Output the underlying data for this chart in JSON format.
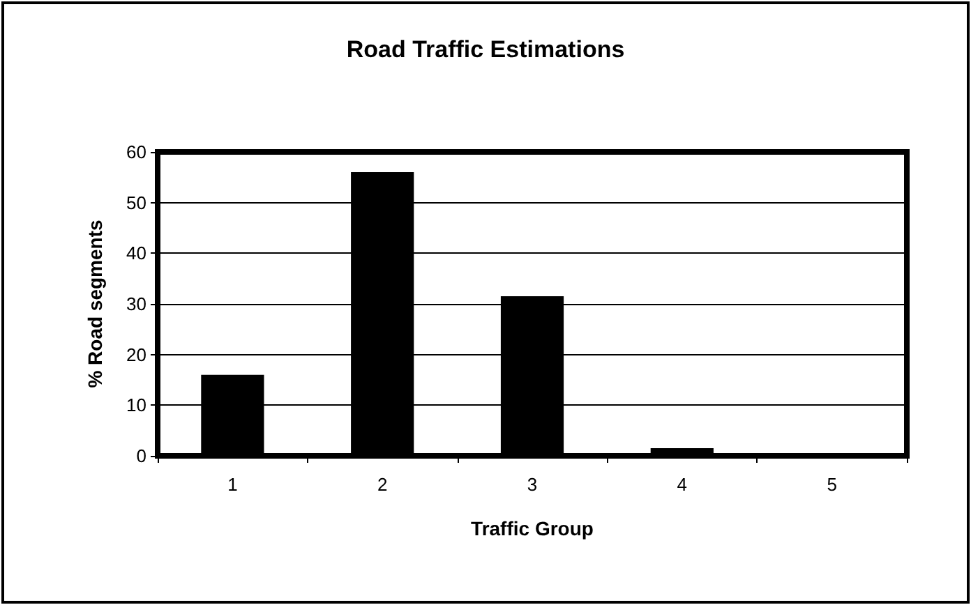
{
  "chart_data": {
    "type": "bar",
    "title": "Road Traffic Estimations",
    "xlabel": "Traffic Group",
    "ylabel": "% Road segments",
    "categories": [
      "1",
      "2",
      "3",
      "4",
      "5"
    ],
    "values": [
      16,
      56,
      31.5,
      1.5,
      0
    ],
    "color": "#000000",
    "ylim": [
      0,
      60
    ],
    "yticks": [
      0,
      10,
      20,
      30,
      40,
      50,
      60
    ],
    "grid": "y"
  }
}
